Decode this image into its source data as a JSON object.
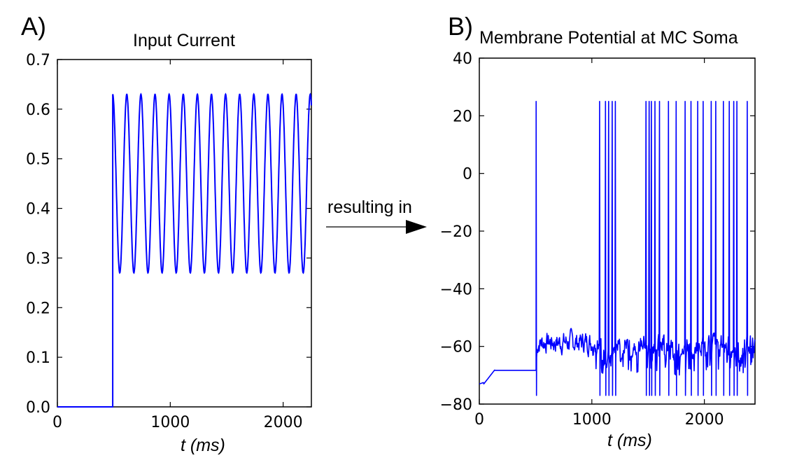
{
  "panels": {
    "a_label": "A)",
    "b_label": "B)"
  },
  "connector": {
    "text": "resulting in"
  },
  "colors": {
    "line": "#0000ff",
    "axis": "#000000"
  },
  "chart_data": [
    {
      "type": "line",
      "title": "Input Current",
      "xlabel": "t (ms)",
      "ylabel": "",
      "xlim": [
        0,
        2250
      ],
      "ylim": [
        0.0,
        0.7
      ],
      "xticks": [
        0,
        1000,
        2000
      ],
      "xtick_labels": [
        "0",
        "1000",
        "2000"
      ],
      "yticks": [
        0.0,
        0.1,
        0.2,
        0.3,
        0.4,
        0.5,
        0.6,
        0.7
      ],
      "ytick_labels": [
        "0.0",
        "0.1",
        "0.2",
        "0.3",
        "0.4",
        "0.5",
        "0.6",
        "0.7"
      ],
      "grid": false,
      "series": [
        {
          "baseline": 0.0,
          "onset_ms": 490,
          "oscillation_min": 0.27,
          "oscillation_max": 0.63,
          "frequency_hz": 8,
          "end_ms": 2250
        }
      ]
    },
    {
      "type": "line",
      "title": "Membrane Potential at MC Soma",
      "xlabel": "t (ms)",
      "ylabel": "",
      "xlim": [
        0,
        2450
      ],
      "ylim": [
        -80,
        40
      ],
      "xticks": [
        0,
        1000,
        2000
      ],
      "xtick_labels": [
        "0",
        "1000",
        "2000"
      ],
      "yticks": [
        -80,
        -60,
        -40,
        -20,
        0,
        20,
        40
      ],
      "ytick_labels": [
        "−80",
        "−60",
        "−40",
        "−20",
        "0",
        "20",
        "40"
      ],
      "grid": false,
      "series": [
        {
          "rest_initial": -73,
          "rest_plateau": -68,
          "stimulus_onset_ms": 505,
          "spike_peak": 25,
          "spike_trough": -77,
          "subthreshold_range": [
            -65,
            -52
          ],
          "spike_times_ms": [
            505,
            1015,
            1070,
            1120,
            1150,
            1180,
            1210,
            1480,
            1510,
            1530,
            1560,
            1600,
            1680,
            1750,
            1830,
            1880,
            1940,
            1990,
            2060,
            2100,
            2170,
            2220,
            2260,
            2290,
            2380
          ]
        }
      ]
    }
  ]
}
